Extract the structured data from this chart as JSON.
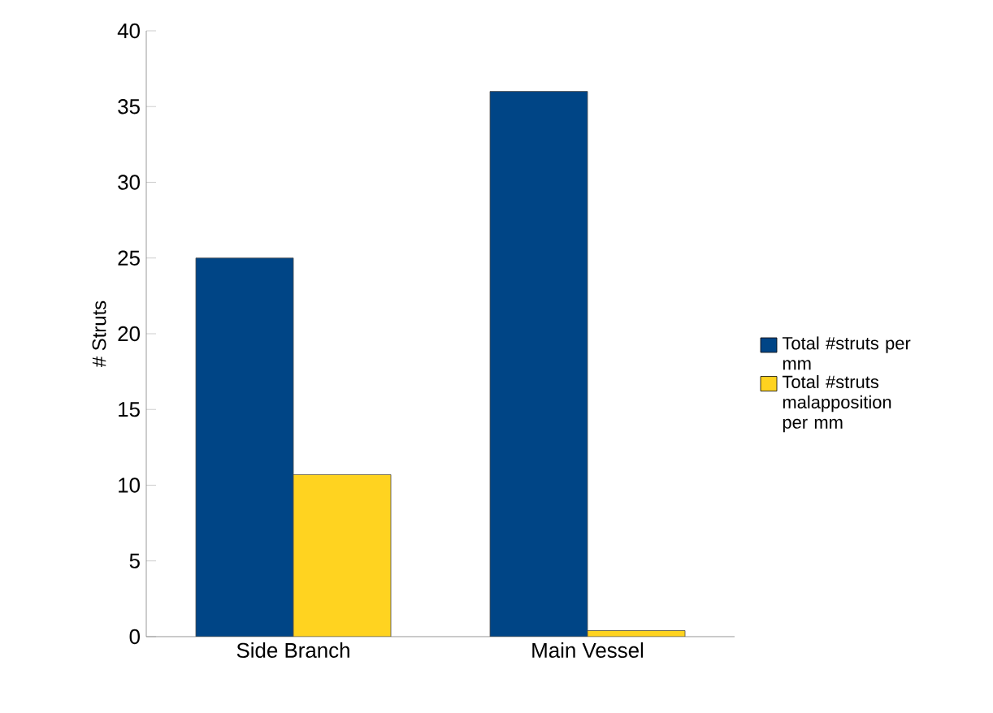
{
  "chart_data": {
    "type": "bar",
    "ylabel": "# Struts",
    "categories": [
      "Side Branch",
      "Main Vessel"
    ],
    "series": [
      {
        "name": "Total #struts per mm",
        "color": "#004586",
        "values": [
          25,
          36
        ]
      },
      {
        "name": "Total #struts malapposition per mm",
        "color": "#ffd320",
        "values": [
          10.7,
          0.4
        ]
      }
    ],
    "ylim": [
      0,
      40
    ],
    "yticks": [
      0,
      5,
      10,
      15,
      20,
      25,
      30,
      35,
      40
    ],
    "grid": false,
    "legend": "right"
  }
}
